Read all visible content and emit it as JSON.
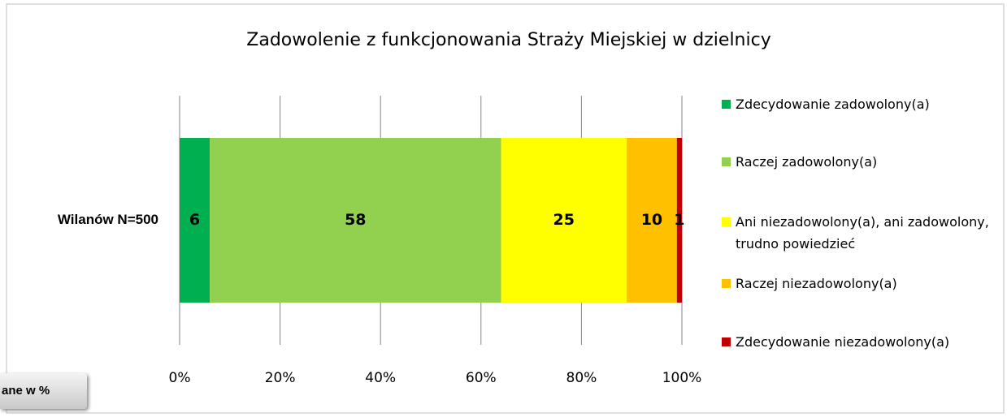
{
  "chart_data": {
    "type": "stacked_bar_horizontal",
    "title": "Zadowolenie z funkcjonowania Straży Miejskiej w dzielnicy",
    "categories": [
      "Wilanów N=500"
    ],
    "series": [
      {
        "name": "Zdecydowanie zadowolony(a)",
        "color": "#00b050",
        "values": [
          6
        ]
      },
      {
        "name": "Raczej zadowolony(a)",
        "color": "#92d050",
        "values": [
          58
        ]
      },
      {
        "name": "Ani niezadowolony(a), ani zadowolony, trudno powiedzieć",
        "color": "#ffff00",
        "values": [
          25
        ]
      },
      {
        "name": "Raczej niezadowolony(a)",
        "color": "#ffc000",
        "values": [
          10
        ]
      },
      {
        "name": "Zdecydowanie niezadowolony(a)",
        "color": "#c00000",
        "values": [
          1
        ]
      }
    ],
    "xlim": [
      0,
      100
    ],
    "xticks": [
      {
        "value": 0,
        "label": "0%"
      },
      {
        "value": 20,
        "label": "20%"
      },
      {
        "value": 40,
        "label": "40%"
      },
      {
        "value": 60,
        "label": "60%"
      },
      {
        "value": 80,
        "label": "80%"
      },
      {
        "value": 100,
        "label": "100%"
      }
    ],
    "grid": true,
    "legend": "right",
    "annotation": "ane w %"
  }
}
